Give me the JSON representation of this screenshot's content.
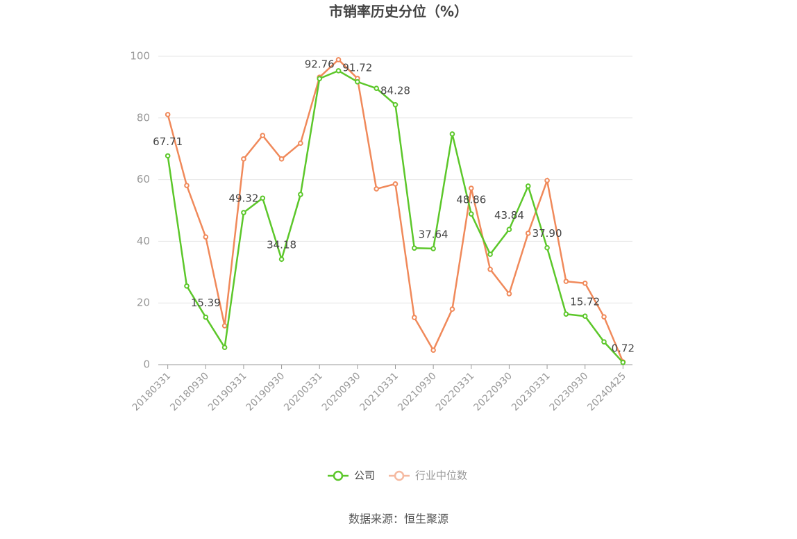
{
  "chart_data": {
    "type": "line",
    "title": "市销率历史分位（%）",
    "categories": [
      "20180331",
      null,
      "20180930",
      null,
      "20190331",
      null,
      "20190930",
      null,
      "20200331",
      null,
      "20200930",
      null,
      "20210331",
      null,
      "20210930",
      null,
      "20220331",
      null,
      "20220930",
      null,
      "20230331",
      null,
      "20230930",
      null,
      "20240425"
    ],
    "series": [
      {
        "name": "公司",
        "color": "#5cc72a",
        "values": [
          67.71,
          25.5,
          15.39,
          5.6,
          49.32,
          54.0,
          34.18,
          55.2,
          92.76,
          95.3,
          91.72,
          89.6,
          84.28,
          37.8,
          37.64,
          74.8,
          48.86,
          35.8,
          43.84,
          57.9,
          37.9,
          16.4,
          15.72,
          7.4,
          0.72
        ],
        "value_labels": [
          "67.71",
          null,
          "15.39",
          null,
          "49.32",
          null,
          "34.18",
          null,
          "92.76",
          null,
          "91.72",
          null,
          "84.28",
          null,
          "37.64",
          null,
          "48.86",
          null,
          "43.84",
          null,
          "37.90",
          null,
          "15.72",
          null,
          "0.72"
        ]
      },
      {
        "name": "行业中位数",
        "color": "#f0895a",
        "values": [
          81.1,
          58.1,
          41.4,
          12.6,
          66.7,
          74.3,
          66.7,
          71.8,
          93.2,
          98.9,
          92.8,
          57.0,
          58.6,
          15.3,
          4.7,
          18.0,
          57.2,
          30.9,
          23.0,
          42.6,
          59.7,
          27.0,
          26.4,
          15.5,
          0.9
        ]
      }
    ],
    "ylim": [
      0,
      100
    ],
    "yticks": [
      0,
      20,
      40,
      60,
      80,
      100
    ],
    "grid": true,
    "source": "数据来源：恒生聚源"
  }
}
